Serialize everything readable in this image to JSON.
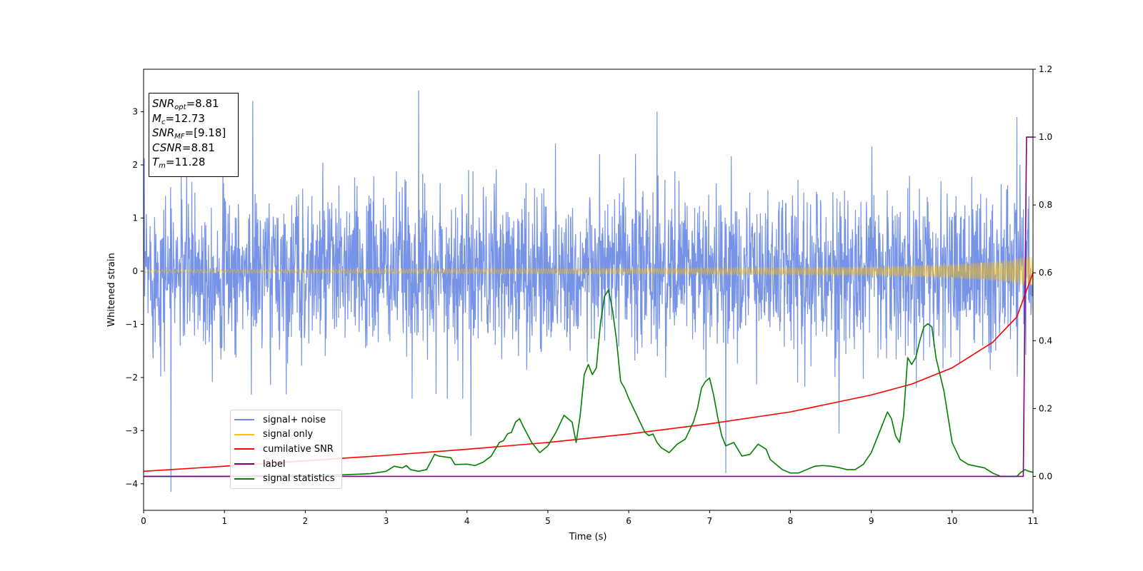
{
  "stats": {
    "snr_opt": {
      "sym": "SNR",
      "sub": "opt",
      "val": "=8.81"
    },
    "mc": {
      "sym": "M",
      "sub": "c",
      "val": "=12.73"
    },
    "snr_mf": {
      "sym": "SNR",
      "sub": "MF",
      "val": "=[9.18]"
    },
    "csnr": {
      "sym": "CSNR",
      "val": "=8.81"
    },
    "tm": {
      "sym": "T",
      "sub": "m",
      "val": "=11.28"
    }
  },
  "chart_data": {
    "type": "line",
    "xlabel": "Time (s)",
    "ylabel": "Whitened strain",
    "xlim": [
      0,
      11
    ],
    "ylim": [
      -4.5,
      3.8
    ],
    "y2lim": [
      -0.1,
      1.2
    ],
    "xticks": [
      "0",
      "1",
      "2",
      "3",
      "4",
      "5",
      "6",
      "7",
      "8",
      "9",
      "10",
      "11"
    ],
    "yticks": [
      "−4",
      "−3",
      "−2",
      "−1",
      "0",
      "1",
      "2",
      "3"
    ],
    "y2ticks": [
      "0.0",
      "0.2",
      "0.4",
      "0.6",
      "0.8",
      "1.0",
      "1.2"
    ],
    "grid": false,
    "legend_position": "lower-left",
    "series": [
      {
        "name": "signal+ noise",
        "color": "#6f8de6",
        "axis": "left",
        "description": "whitened noise around 0, envelope roughly ±1.5 with peaks to about +3.4 and −4.2",
        "noise_std": 0.75,
        "peaks": [
          [
            0.34,
            -4.15
          ],
          [
            1.35,
            3.2
          ],
          [
            3.4,
            3.4
          ],
          [
            4.05,
            -3.1
          ],
          [
            6.35,
            3.0
          ],
          [
            7.2,
            -3.8
          ],
          [
            8.6,
            -3.05
          ],
          [
            10.8,
            2.9
          ]
        ]
      },
      {
        "name": "signal only",
        "color": "#ffc000",
        "axis": "left",
        "amplitude": [
          [
            0,
            0.03
          ],
          [
            6,
            0.05
          ],
          [
            9,
            0.08
          ],
          [
            10,
            0.13
          ],
          [
            10.6,
            0.19
          ],
          [
            11,
            0.28
          ]
        ]
      },
      {
        "name": "cumilative SNR",
        "color": "#ff0000",
        "axis": "right",
        "x": [
          0,
          1,
          2,
          3,
          4,
          5,
          6,
          7,
          8,
          9,
          9.5,
          10,
          10.5,
          10.8,
          11
        ],
        "y": [
          0.015,
          0.03,
          0.046,
          0.062,
          0.08,
          0.1,
          0.125,
          0.155,
          0.19,
          0.24,
          0.272,
          0.32,
          0.395,
          0.47,
          0.6
        ]
      },
      {
        "name": "label",
        "color": "#800080",
        "axis": "right",
        "x": [
          0,
          10.88,
          10.92,
          11
        ],
        "y": [
          0.0,
          0.0,
          1.0,
          1.0
        ]
      },
      {
        "name": "signal statistics",
        "color": "#008000",
        "axis": "right",
        "x": [
          0,
          0.5,
          1,
          1.5,
          2,
          2.5,
          2.8,
          3.0,
          3.1,
          3.2,
          3.25,
          3.3,
          3.4,
          3.5,
          3.6,
          3.65,
          3.8,
          3.85,
          4.0,
          4.1,
          4.2,
          4.3,
          4.4,
          4.45,
          4.5,
          4.55,
          4.6,
          4.65,
          4.7,
          4.8,
          4.9,
          5.0,
          5.1,
          5.2,
          5.3,
          5.35,
          5.4,
          5.45,
          5.5,
          5.55,
          5.6,
          5.65,
          5.7,
          5.75,
          5.8,
          5.85,
          5.9,
          5.95,
          6.0,
          6.1,
          6.2,
          6.25,
          6.3,
          6.35,
          6.4,
          6.5,
          6.6,
          6.7,
          6.8,
          6.85,
          6.9,
          6.95,
          7.0,
          7.05,
          7.1,
          7.15,
          7.2,
          7.3,
          7.4,
          7.5,
          7.6,
          7.7,
          7.75,
          7.8,
          7.9,
          8.0,
          8.1,
          8.2,
          8.3,
          8.4,
          8.5,
          8.6,
          8.7,
          8.8,
          8.9,
          9.0,
          9.1,
          9.2,
          9.25,
          9.3,
          9.35,
          9.4,
          9.45,
          9.5,
          9.55,
          9.6,
          9.65,
          9.7,
          9.75,
          9.8,
          9.85,
          9.9,
          10.0,
          10.1,
          10.2,
          10.3,
          10.4,
          10.5,
          10.6,
          10.7,
          10.8,
          10.85,
          10.9,
          10.95,
          11.0
        ],
        "y": [
          0.0,
          0.0,
          0.0,
          0.002,
          0.003,
          0.005,
          0.008,
          0.015,
          0.03,
          0.025,
          0.032,
          0.02,
          0.015,
          0.02,
          0.065,
          0.06,
          0.055,
          0.035,
          0.036,
          0.032,
          0.042,
          0.06,
          0.1,
          0.105,
          0.125,
          0.13,
          0.16,
          0.17,
          0.145,
          0.1,
          0.07,
          0.09,
          0.13,
          0.18,
          0.16,
          0.1,
          0.18,
          0.3,
          0.33,
          0.3,
          0.32,
          0.45,
          0.53,
          0.55,
          0.49,
          0.4,
          0.28,
          0.26,
          0.23,
          0.18,
          0.13,
          0.12,
          0.125,
          0.1,
          0.085,
          0.07,
          0.095,
          0.11,
          0.16,
          0.2,
          0.26,
          0.28,
          0.29,
          0.24,
          0.175,
          0.12,
          0.09,
          0.1,
          0.06,
          0.065,
          0.095,
          0.08,
          0.05,
          0.04,
          0.02,
          0.01,
          0.01,
          0.02,
          0.03,
          0.032,
          0.03,
          0.026,
          0.02,
          0.02,
          0.035,
          0.07,
          0.13,
          0.19,
          0.17,
          0.12,
          0.1,
          0.18,
          0.35,
          0.33,
          0.35,
          0.4,
          0.44,
          0.45,
          0.44,
          0.35,
          0.3,
          0.25,
          0.1,
          0.05,
          0.035,
          0.03,
          0.025,
          0.01,
          0.0,
          0.0,
          0.0,
          0.012,
          0.02,
          0.015,
          0.012
        ]
      }
    ]
  }
}
